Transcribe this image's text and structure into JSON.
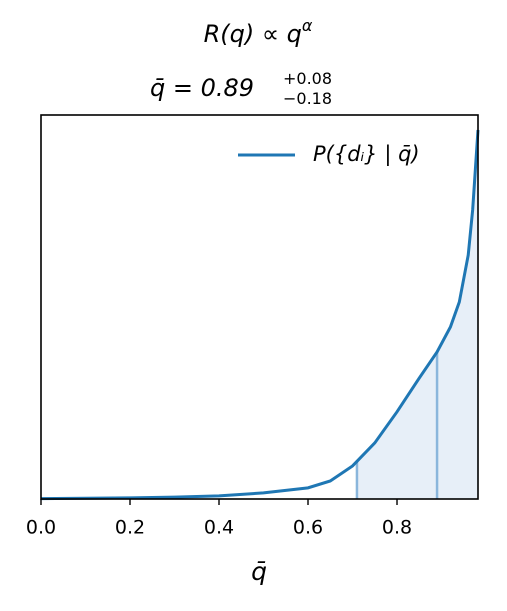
{
  "chart_data": {
    "type": "line",
    "title": "R(q) ∝ q",
    "title_superscript": "α",
    "subtitle": "q̄ = 0.89",
    "subtitle_superscript": "+0.08",
    "subtitle_subscript": "−0.18",
    "x_label": "q̄",
    "x": [
      0,
      0.1,
      0.2,
      0.3,
      0.4,
      0.5,
      0.6,
      0.65,
      0.7,
      0.75,
      0.8,
      0.85,
      0.89,
      0.92,
      0.94,
      0.96,
      0.97,
      0.982
    ],
    "series": [
      {
        "name": "P({dᵢ} | q̄)",
        "color": "#1f77b4",
        "values": [
          0.001,
          0.002,
          0.003,
          0.005,
          0.008,
          0.016,
          0.029,
          0.047,
          0.086,
          0.146,
          0.227,
          0.315,
          0.383,
          0.448,
          0.513,
          0.635,
          0.753,
          0.961
        ]
      }
    ],
    "interval_lines": [
      0.71,
      0.89
    ],
    "interval_line_color": "#8ab6dc",
    "shade_color": "#e7eff8",
    "xlim": [
      0,
      0.982
    ],
    "ylim": [
      0,
      1
    ],
    "xticks": [
      {
        "value": 0,
        "label": "0.0"
      },
      0.2,
      0.4,
      0.6,
      0.8
    ],
    "legend": "upper right"
  }
}
